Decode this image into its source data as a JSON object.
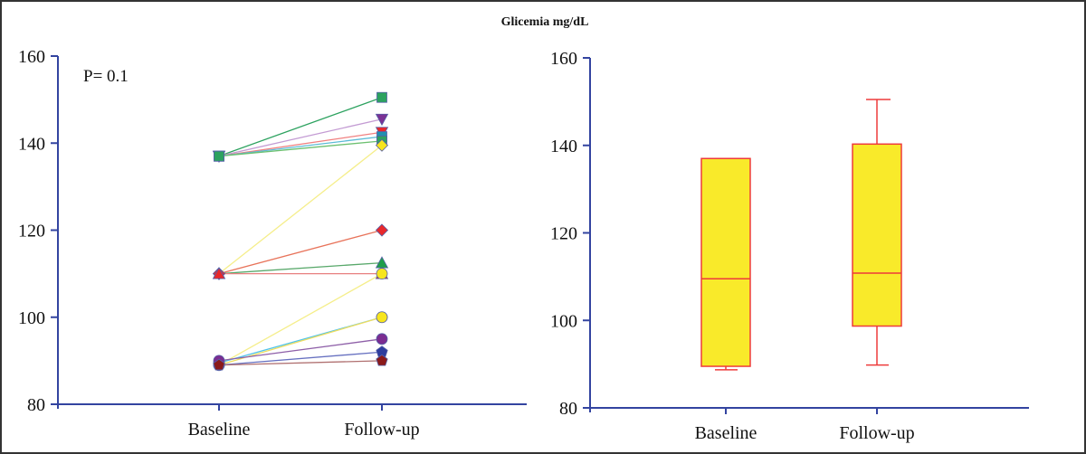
{
  "title": "Glicemia mg/dL",
  "chart_data": [
    {
      "type": "line",
      "annotation": "P= 0.1",
      "categories": [
        "Baseline",
        "Follow-up"
      ],
      "ylim": [
        80,
        160
      ],
      "yticks": [
        "80",
        "100",
        "120",
        "140",
        "160"
      ],
      "grid": false,
      "series": [
        {
          "values": [
            137,
            150.5
          ],
          "color": "#2ca25f",
          "marker": "square"
        },
        {
          "values": [
            137,
            145.5
          ],
          "color": "#7b3294",
          "marker": "triangle-down",
          "line": "#c39bd3"
        },
        {
          "values": [
            137,
            142.5
          ],
          "color": "#e8282b",
          "marker": "triangle-down",
          "line": "#f08080"
        },
        {
          "values": [
            137,
            141.5
          ],
          "color": "#1f8fb0",
          "marker": "square",
          "line": "#5bbbd6"
        },
        {
          "values": [
            137,
            140.5
          ],
          "color": "#2ca25f",
          "marker": "square",
          "line": "#6cc070"
        },
        {
          "values": [
            110,
            139.5
          ],
          "color": "#f7e51e",
          "marker": "diamond",
          "line": "#f5ee8a"
        },
        {
          "values": [
            110,
            120
          ],
          "color": "#e8282b",
          "marker": "diamond",
          "line": "#e8735a"
        },
        {
          "values": [
            110,
            112.5
          ],
          "color": "#1f9e4a",
          "marker": "triangle",
          "line": "#58a86a"
        },
        {
          "values": [
            110,
            110
          ],
          "color": "#e8282b",
          "marker": "triangle",
          "line": "#e88080"
        },
        {
          "values": [
            89,
            110
          ],
          "color": "#f7e51e",
          "marker": "circle",
          "line": "#f5ee8a"
        },
        {
          "values": [
            89.5,
            100
          ],
          "color": "#1ba6e0",
          "marker": "circle",
          "line": "#4fc3ea"
        },
        {
          "values": [
            89,
            100
          ],
          "color": "#f7e51e",
          "marker": "circle",
          "line": "#eedd60"
        },
        {
          "values": [
            90,
            95
          ],
          "color": "#7b2d91",
          "marker": "circle",
          "line": "#8e5fa8"
        },
        {
          "values": [
            89,
            92
          ],
          "color": "#2e3d9e",
          "marker": "pentagon",
          "line": "#6670c0"
        },
        {
          "values": [
            89,
            90
          ],
          "color": "#8b1a1a",
          "marker": "pentagon",
          "line": "#b07070"
        }
      ]
    },
    {
      "type": "box",
      "categories": [
        "Baseline",
        "Follow-up"
      ],
      "ylim": [
        80,
        160
      ],
      "yticks": [
        "80",
        "100",
        "120",
        "140",
        "160"
      ],
      "grid": false,
      "box_fill": "#f9ea2a",
      "box_stroke": "#ee3b3b",
      "boxes": [
        {
          "min": 88.7,
          "q1": 89.5,
          "median": 109.5,
          "q3": 137,
          "max": 137
        },
        {
          "min": 89.8,
          "q1": 98.7,
          "median": 110.8,
          "q3": 140.3,
          "max": 150.5
        }
      ]
    }
  ]
}
